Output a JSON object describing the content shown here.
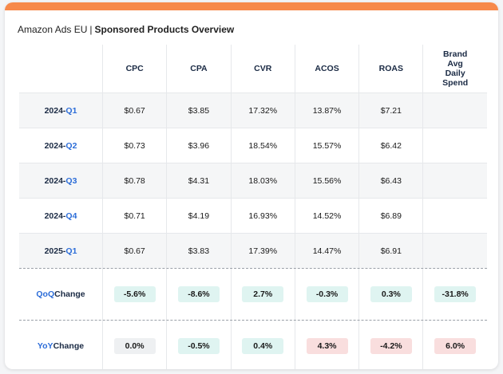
{
  "title": {
    "brand": "Amazon Ads EU",
    "separator": "|",
    "report": "Sponsored Products Overview"
  },
  "columns": [
    "CPC",
    "CPA",
    "CVR",
    "ACOS",
    "ROAS",
    "Brand Avg Daily Spend"
  ],
  "column_lines": [
    [
      "CPC"
    ],
    [
      "CPA"
    ],
    [
      "CVR"
    ],
    [
      "ACOS"
    ],
    [
      "ROAS"
    ],
    [
      "Brand",
      "Avg",
      "Daily",
      "Spend"
    ]
  ],
  "rows": [
    {
      "year": "2024-",
      "quarter": "Q1",
      "values": [
        "$0.67",
        "$3.85",
        "17.32%",
        "13.87%",
        "$7.21",
        ""
      ]
    },
    {
      "year": "2024-",
      "quarter": "Q2",
      "values": [
        "$0.73",
        "$3.96",
        "18.54%",
        "15.57%",
        "$6.42",
        ""
      ]
    },
    {
      "year": "2024-",
      "quarter": "Q3",
      "values": [
        "$0.78",
        "$4.31",
        "18.03%",
        "15.56%",
        "$6.43",
        ""
      ]
    },
    {
      "year": "2024-",
      "quarter": "Q4",
      "values": [
        "$0.71",
        "$4.19",
        "16.93%",
        "14.52%",
        "$6.89",
        ""
      ]
    },
    {
      "year": "2025-",
      "quarter": "Q1",
      "values": [
        "$0.67",
        "$3.83",
        "17.39%",
        "14.47%",
        "$6.91",
        ""
      ]
    }
  ],
  "changes": [
    {
      "prefix": "QoQ",
      "suffix": "Change",
      "values": [
        {
          "text": "-5.6%",
          "tone": "pos"
        },
        {
          "text": "-8.6%",
          "tone": "pos"
        },
        {
          "text": "2.7%",
          "tone": "pos"
        },
        {
          "text": "-0.3%",
          "tone": "pos"
        },
        {
          "text": "0.3%",
          "tone": "pos"
        },
        {
          "text": "-31.8%",
          "tone": "pos"
        }
      ]
    },
    {
      "prefix": "YoY",
      "suffix": "Change",
      "values": [
        {
          "text": "0.0%",
          "tone": "neu"
        },
        {
          "text": "-0.5%",
          "tone": "pos"
        },
        {
          "text": "0.4%",
          "tone": "pos"
        },
        {
          "text": "4.3%",
          "tone": "neg"
        },
        {
          "text": "-4.2%",
          "tone": "neg"
        },
        {
          "text": "6.0%",
          "tone": "neg"
        }
      ]
    }
  ],
  "colors": {
    "accent_bar": "#f7894a",
    "positive": "#dff4f1",
    "negative": "#f9dede",
    "neutral": "#eef0f2",
    "link_blue": "#2b6cd8"
  }
}
